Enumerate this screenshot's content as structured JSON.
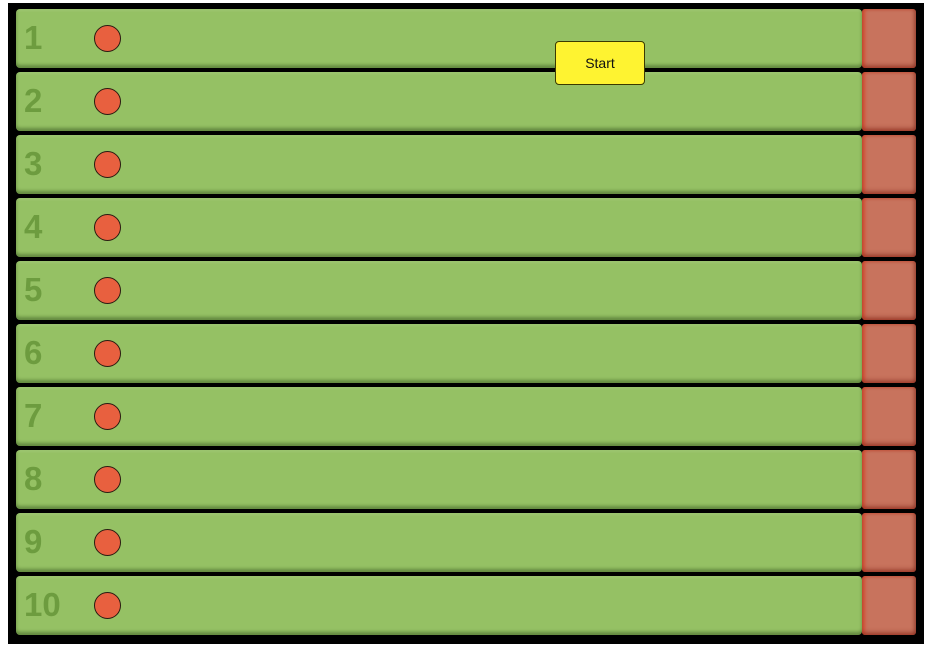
{
  "controls": {
    "start_label": "Start"
  },
  "lanes": [
    {
      "number": "1"
    },
    {
      "number": "2"
    },
    {
      "number": "3"
    },
    {
      "number": "4"
    },
    {
      "number": "5"
    },
    {
      "number": "6"
    },
    {
      "number": "7"
    },
    {
      "number": "8"
    },
    {
      "number": "9"
    },
    {
      "number": "10"
    }
  ],
  "colors": {
    "frame": "#000000",
    "lane": "#95c164",
    "lane_number": "#6d9c3f",
    "finish": "#c8735d",
    "runner": "#e8603f",
    "start_button": "#fef331"
  }
}
